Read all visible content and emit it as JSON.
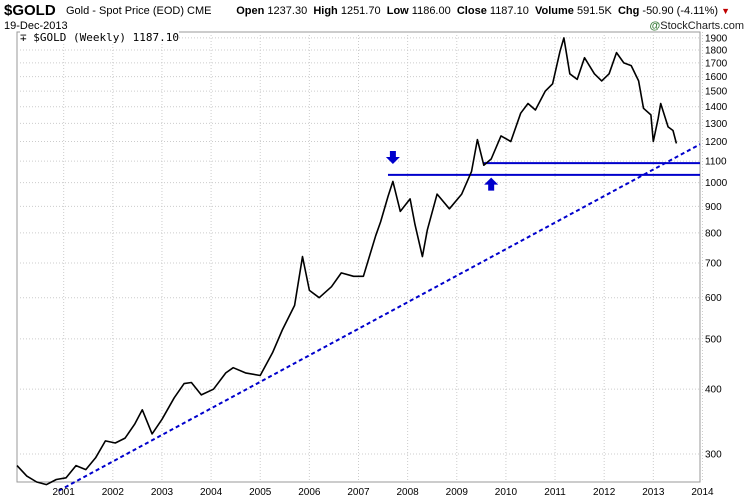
{
  "header": {
    "symbol": "$GOLD",
    "description": "Gold - Spot Price (EOD)",
    "exchange": "CME",
    "date": "19-Dec-2013",
    "open_label": "Open",
    "open": "1237.30",
    "high_label": "High",
    "high": "1251.70",
    "low_label": "Low",
    "low": "1186.00",
    "close_label": "Close",
    "close": "1187.10",
    "volume_label": "Volume",
    "volume": "591.5K",
    "chg_label": "Chg",
    "chg": "-50.90 (-4.11%)",
    "brand_prefix": "@",
    "brand": "StockCharts.com"
  },
  "legend": {
    "text": "$GOLD (Weekly) 1187.10"
  },
  "colors": {
    "price": "#000000",
    "lines": "#0000cc",
    "grid": "#cccccc",
    "down": "#c00000"
  },
  "chart_data": {
    "type": "line",
    "title": "Gold - Spot Price (EOD)",
    "series_name": "$GOLD (Weekly)",
    "y_scale": "log",
    "ylim": [
      265,
      1950
    ],
    "xlim": [
      2000.55,
      2014.45
    ],
    "y_ticks": [
      300,
      400,
      500,
      600,
      700,
      800,
      900,
      1000,
      1100,
      1200,
      1300,
      1400,
      1500,
      1600,
      1700,
      1800,
      1900
    ],
    "x_ticks": [
      "2001",
      "2002",
      "2003",
      "2004",
      "2005",
      "2006",
      "2007",
      "2008",
      "2009",
      "2010",
      "2011",
      "2012",
      "2013",
      "2014"
    ],
    "price": [
      [
        2000.55,
        285
      ],
      [
        2000.75,
        272
      ],
      [
        2000.95,
        265
      ],
      [
        2001.15,
        262
      ],
      [
        2001.35,
        268
      ],
      [
        2001.55,
        270
      ],
      [
        2001.75,
        285
      ],
      [
        2001.95,
        280
      ],
      [
        2002.15,
        295
      ],
      [
        2002.35,
        318
      ],
      [
        2002.55,
        315
      ],
      [
        2002.75,
        322
      ],
      [
        2002.95,
        343
      ],
      [
        2003.1,
        365
      ],
      [
        2003.3,
        328
      ],
      [
        2003.5,
        350
      ],
      [
        2003.75,
        385
      ],
      [
        2003.95,
        410
      ],
      [
        2004.1,
        412
      ],
      [
        2004.3,
        390
      ],
      [
        2004.55,
        400
      ],
      [
        2004.8,
        430
      ],
      [
        2004.95,
        440
      ],
      [
        2005.2,
        430
      ],
      [
        2005.5,
        425
      ],
      [
        2005.75,
        470
      ],
      [
        2005.95,
        520
      ],
      [
        2006.2,
        580
      ],
      [
        2006.36,
        720
      ],
      [
        2006.5,
        620
      ],
      [
        2006.7,
        600
      ],
      [
        2006.95,
        630
      ],
      [
        2007.15,
        670
      ],
      [
        2007.4,
        660
      ],
      [
        2007.6,
        660
      ],
      [
        2007.85,
        790
      ],
      [
        2007.95,
        840
      ],
      [
        2008.1,
        940
      ],
      [
        2008.2,
        1005
      ],
      [
        2008.35,
        880
      ],
      [
        2008.55,
        930
      ],
      [
        2008.65,
        830
      ],
      [
        2008.8,
        720
      ],
      [
        2008.9,
        810
      ],
      [
        2009.1,
        950
      ],
      [
        2009.35,
        890
      ],
      [
        2009.6,
        950
      ],
      [
        2009.8,
        1050
      ],
      [
        2009.92,
        1210
      ],
      [
        2010.05,
        1080
      ],
      [
        2010.2,
        1110
      ],
      [
        2010.4,
        1230
      ],
      [
        2010.6,
        1200
      ],
      [
        2010.8,
        1360
      ],
      [
        2010.95,
        1420
      ],
      [
        2011.1,
        1380
      ],
      [
        2011.3,
        1500
      ],
      [
        2011.45,
        1550
      ],
      [
        2011.6,
        1790
      ],
      [
        2011.68,
        1900
      ],
      [
        2011.8,
        1620
      ],
      [
        2011.95,
        1580
      ],
      [
        2012.1,
        1740
      ],
      [
        2012.3,
        1620
      ],
      [
        2012.45,
        1570
      ],
      [
        2012.6,
        1620
      ],
      [
        2012.75,
        1780
      ],
      [
        2012.9,
        1700
      ],
      [
        2013.05,
        1680
      ],
      [
        2013.2,
        1570
      ],
      [
        2013.3,
        1390
      ],
      [
        2013.45,
        1350
      ],
      [
        2013.5,
        1200
      ],
      [
        2013.6,
        1330
      ],
      [
        2013.65,
        1420
      ],
      [
        2013.8,
        1280
      ],
      [
        2013.9,
        1260
      ],
      [
        2013.97,
        1190
      ]
    ],
    "horizontal_lines": [
      1090,
      1035
    ],
    "trendline": [
      [
        2001.4,
        255
      ],
      [
        2014.45,
        1185
      ]
    ],
    "annotations": [
      {
        "type": "arrow-down",
        "x": 2008.2,
        "y": 1110
      },
      {
        "type": "arrow-up",
        "x": 2010.2,
        "y": 1000
      }
    ]
  }
}
